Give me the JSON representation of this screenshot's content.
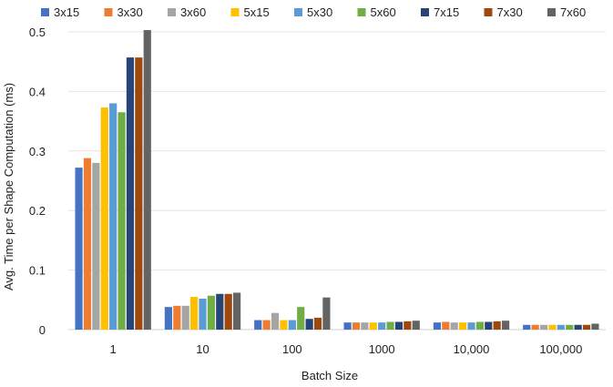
{
  "chart_data": {
    "type": "bar",
    "title": "",
    "xlabel": "Batch Size",
    "ylabel": "Avg. Time per Shape Computation (ms)",
    "ylim": [
      0,
      0.5
    ],
    "yticks": [
      "0",
      "0.1",
      "0.2",
      "0.3",
      "0.4",
      "0.5"
    ],
    "grid": "horizontal",
    "legend": "top",
    "categories": [
      "1",
      "10",
      "100",
      "1000",
      "10,000",
      "100,000"
    ],
    "series": [
      {
        "name": "3x15",
        "color": "#4472C4",
        "values": [
          0.272,
          0.038,
          0.016,
          0.012,
          0.012,
          0.008
        ]
      },
      {
        "name": "3x30",
        "color": "#ED7D31",
        "values": [
          0.288,
          0.04,
          0.016,
          0.012,
          0.013,
          0.008
        ]
      },
      {
        "name": "3x60",
        "color": "#A5A5A5",
        "values": [
          0.28,
          0.04,
          0.028,
          0.012,
          0.012,
          0.008
        ]
      },
      {
        "name": "5x15",
        "color": "#FFC000",
        "values": [
          0.373,
          0.055,
          0.016,
          0.012,
          0.012,
          0.008
        ]
      },
      {
        "name": "5x30",
        "color": "#5B9BD5",
        "values": [
          0.38,
          0.052,
          0.016,
          0.012,
          0.012,
          0.008
        ]
      },
      {
        "name": "5x60",
        "color": "#70AD47",
        "values": [
          0.365,
          0.057,
          0.038,
          0.013,
          0.013,
          0.008
        ]
      },
      {
        "name": "7x15",
        "color": "#264478",
        "values": [
          0.457,
          0.06,
          0.018,
          0.013,
          0.013,
          0.008
        ]
      },
      {
        "name": "7x30",
        "color": "#9E480E",
        "values": [
          0.457,
          0.06,
          0.02,
          0.014,
          0.014,
          0.008
        ]
      },
      {
        "name": "7x60",
        "color": "#636363",
        "values": [
          0.503,
          0.062,
          0.054,
          0.015,
          0.015,
          0.01
        ]
      }
    ]
  }
}
